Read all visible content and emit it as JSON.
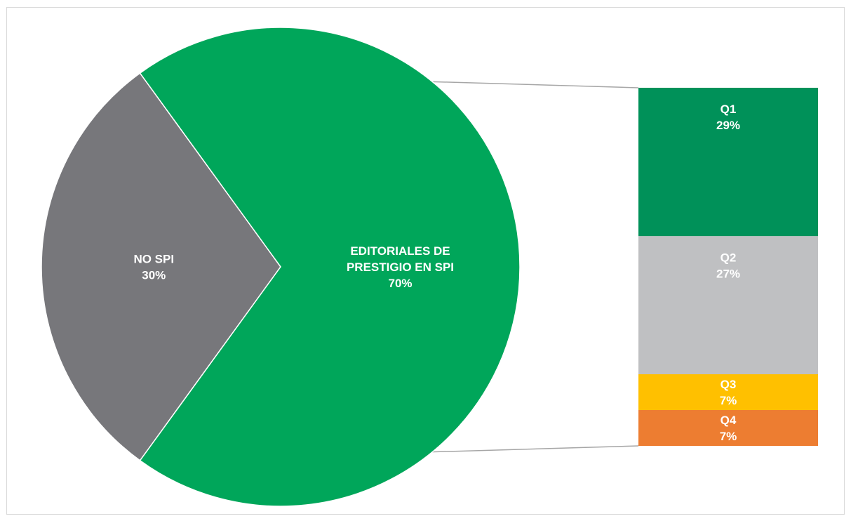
{
  "chart_data": {
    "type": "pie",
    "subtype": "bar-of-pie",
    "title": "",
    "pie": {
      "slices": [
        {
          "key": "no-spi",
          "label_lines": [
            "NO SPI"
          ],
          "percent_label": "30%",
          "value": 30,
          "color": "#77777b"
        },
        {
          "key": "editoriales",
          "label_lines": [
            "EDITORIALES DE",
            "PRESTIGIO EN SPI"
          ],
          "percent_label": "70%",
          "value": 70,
          "color": "#00a65a"
        }
      ]
    },
    "bar": {
      "expands": "editoriales",
      "segments": [
        {
          "key": "q1",
          "label": "Q1",
          "percent_label": "29%",
          "value": 29,
          "color": "#009159"
        },
        {
          "key": "q2",
          "label": "Q2",
          "percent_label": "27%",
          "value": 27,
          "color": "#bfc0c2"
        },
        {
          "key": "q3",
          "label": "Q3",
          "percent_label": "7%",
          "value": 7,
          "color": "#ffc000"
        },
        {
          "key": "q4",
          "label": "Q4",
          "percent_label": "7%",
          "value": 7,
          "color": "#ed7d31"
        }
      ]
    },
    "connector_color": "#a6a6a6",
    "legend": "none",
    "grid": false
  }
}
